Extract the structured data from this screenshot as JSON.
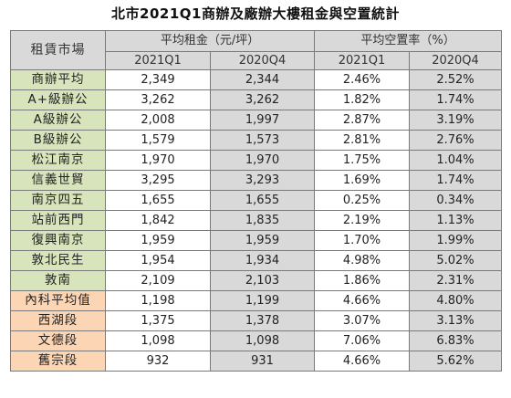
{
  "title": "北市2021Q1商辦及廠辦大樓租金與空置統計",
  "header": {
    "market": "租賃市場",
    "rent_group": "平均租金（元/坪）",
    "vacancy_group": "平均空置率（%）",
    "periods": [
      "2021Q1",
      "2020Q4",
      "2021Q1",
      "2020Q4"
    ]
  },
  "rows": [
    {
      "name": "商辦平均",
      "group": "green",
      "rent_2021q1": "2,349",
      "rent_2020q4": "2,344",
      "vac_2021q1": "2.46%",
      "vac_2020q4": "2.52%"
    },
    {
      "name": "A+級辦公",
      "group": "green",
      "rent_2021q1": "3,262",
      "rent_2020q4": "3,262",
      "vac_2021q1": "1.82%",
      "vac_2020q4": "1.74%"
    },
    {
      "name": "A級辦公",
      "group": "green",
      "rent_2021q1": "2,008",
      "rent_2020q4": "1,997",
      "vac_2021q1": "2.87%",
      "vac_2020q4": "3.19%"
    },
    {
      "name": "B級辦公",
      "group": "green",
      "rent_2021q1": "1,579",
      "rent_2020q4": "1,573",
      "vac_2021q1": "2.81%",
      "vac_2020q4": "2.76%"
    },
    {
      "name": "松江南京",
      "group": "green",
      "rent_2021q1": "1,970",
      "rent_2020q4": "1,970",
      "vac_2021q1": "1.75%",
      "vac_2020q4": "1.04%"
    },
    {
      "name": "信義世貿",
      "group": "green",
      "rent_2021q1": "3,295",
      "rent_2020q4": "3,293",
      "vac_2021q1": "1.69%",
      "vac_2020q4": "1.74%"
    },
    {
      "name": "南京四五",
      "group": "green",
      "rent_2021q1": "1,655",
      "rent_2020q4": "1,655",
      "vac_2021q1": "0.25%",
      "vac_2020q4": "0.34%"
    },
    {
      "name": "站前西門",
      "group": "green",
      "rent_2021q1": "1,842",
      "rent_2020q4": "1,835",
      "vac_2021q1": "2.19%",
      "vac_2020q4": "1.13%"
    },
    {
      "name": "復興南京",
      "group": "green",
      "rent_2021q1": "1,959",
      "rent_2020q4": "1,959",
      "vac_2021q1": "1.70%",
      "vac_2020q4": "1.99%"
    },
    {
      "name": "敦北民生",
      "group": "green",
      "rent_2021q1": "1,954",
      "rent_2020q4": "1,934",
      "vac_2021q1": "4.98%",
      "vac_2020q4": "5.02%"
    },
    {
      "name": "敦南",
      "group": "green",
      "rent_2021q1": "2,109",
      "rent_2020q4": "2,103",
      "vac_2021q1": "1.86%",
      "vac_2020q4": "2.31%"
    },
    {
      "name": "內科平均值",
      "group": "orange",
      "rent_2021q1": "1,198",
      "rent_2020q4": "1,199",
      "vac_2021q1": "4.66%",
      "vac_2020q4": "4.80%"
    },
    {
      "name": "西湖段",
      "group": "orange",
      "rent_2021q1": "1,375",
      "rent_2020q4": "1,378",
      "vac_2021q1": "3.07%",
      "vac_2020q4": "3.13%"
    },
    {
      "name": "文德段",
      "group": "orange",
      "rent_2021q1": "1,098",
      "rent_2020q4": "1,098",
      "vac_2021q1": "7.06%",
      "vac_2020q4": "6.83%"
    },
    {
      "name": "舊宗段",
      "group": "orange",
      "rent_2021q1": "932",
      "rent_2020q4": "931",
      "vac_2021q1": "4.66%",
      "vac_2020q4": "5.62%"
    }
  ],
  "colors": {
    "header_bg": "#d9d9d9",
    "office_label_bg": "#d8e4bc",
    "industrial_label_bg": "#fcd5b4",
    "alt_column_bg": "#d9d9d9",
    "border": "#7a7a7a"
  }
}
